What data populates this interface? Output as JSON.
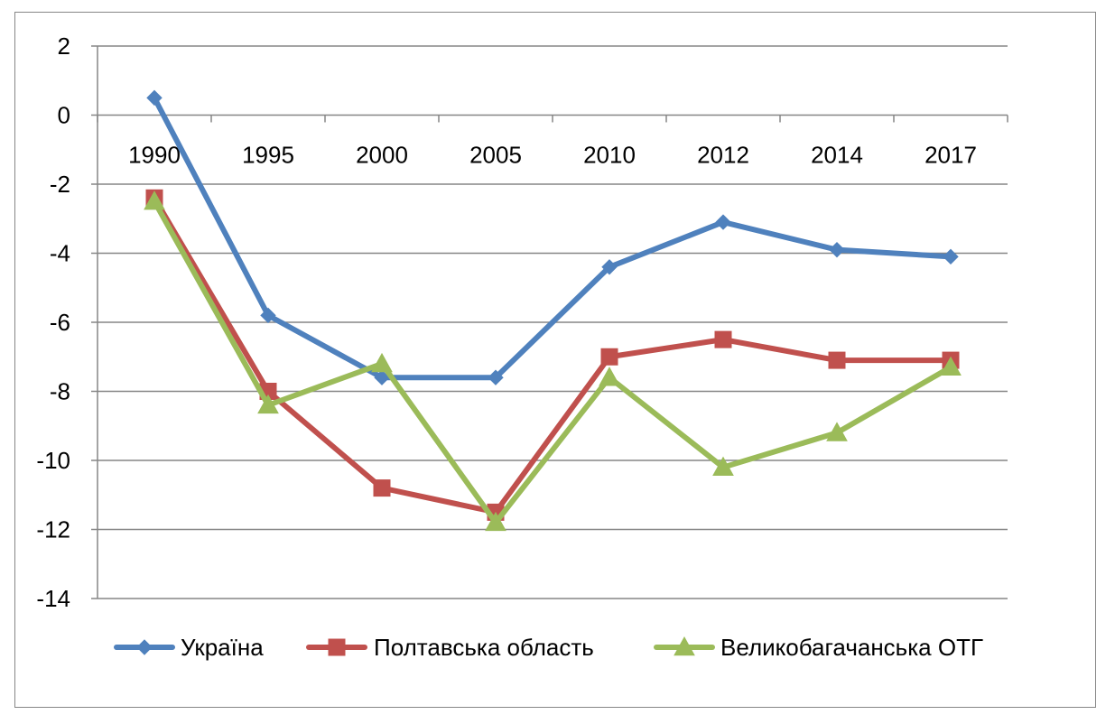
{
  "chart_data": {
    "type": "line",
    "title": "",
    "xlabel": "",
    "ylabel": "",
    "categories": [
      "1990",
      "1995",
      "2000",
      "2005",
      "2010",
      "2012",
      "2014",
      "2017"
    ],
    "ylim": [
      -14,
      2
    ],
    "yticks": [
      2,
      0,
      -2,
      -4,
      -6,
      -8,
      -10,
      -12,
      -14
    ],
    "grid": true,
    "legend_position": "bottom",
    "series": [
      {
        "name": "Україна",
        "color": "#4F81BD",
        "marker": "diamond",
        "values": [
          0.5,
          -5.8,
          -7.6,
          -7.6,
          -4.4,
          -3.1,
          -3.9,
          -4.1
        ]
      },
      {
        "name": "Полтавська область",
        "color": "#C0504D",
        "marker": "square",
        "values": [
          -2.4,
          -8.0,
          -10.8,
          -11.5,
          -7.0,
          -6.5,
          -7.1,
          -7.1
        ]
      },
      {
        "name": "Великобагачанська ОТГ",
        "color": "#9BBB59",
        "marker": "triangle",
        "values": [
          -2.5,
          -8.4,
          -7.2,
          -11.8,
          -7.6,
          -10.2,
          -9.2,
          -7.3
        ]
      }
    ]
  }
}
